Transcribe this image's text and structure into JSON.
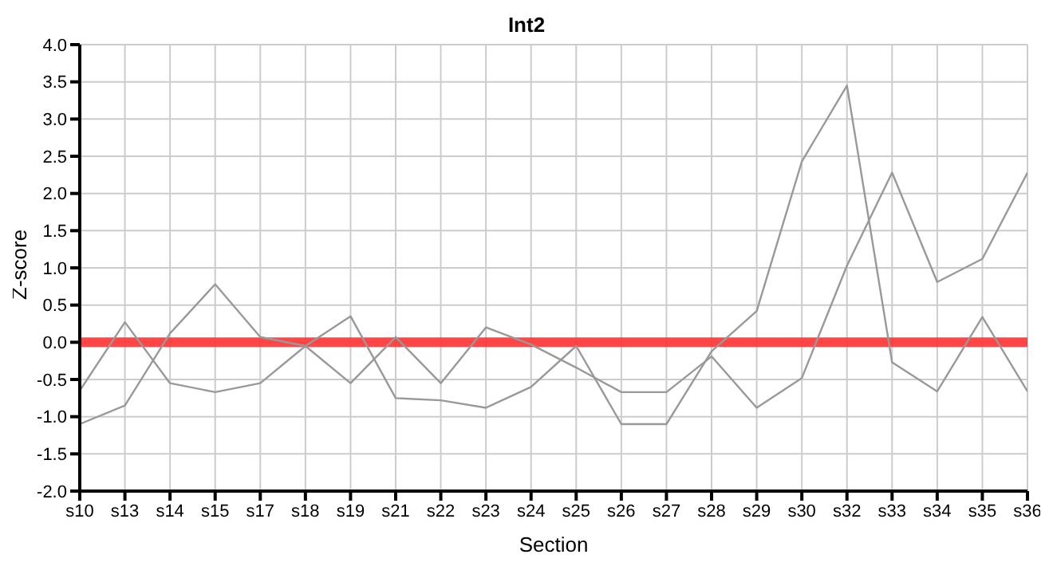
{
  "chart_data": {
    "type": "line",
    "title": "Int2",
    "xlabel": "Section",
    "ylabel": "Z-score",
    "categories": [
      "s10",
      "s13",
      "s14",
      "s15",
      "s17",
      "s18",
      "s19",
      "s21",
      "s22",
      "s23",
      "s24",
      "s25",
      "s26",
      "s27",
      "s28",
      "s29",
      "s30",
      "s32",
      "s33",
      "s34",
      "s35",
      "s36"
    ],
    "series": [
      {
        "color": "#999999",
        "values": [
          -0.65,
          0.27,
          -0.55,
          -0.67,
          -0.55,
          -0.05,
          0.35,
          -0.75,
          -0.78,
          -0.88,
          -0.6,
          -0.05,
          -1.1,
          -1.1,
          -0.12,
          0.42,
          2.43,
          3.45,
          -0.27,
          -0.66,
          0.34,
          -0.66
        ]
      },
      {
        "color": "#999999",
        "values": [
          -1.1,
          -0.85,
          0.12,
          0.78,
          0.07,
          -0.05,
          -0.55,
          0.07,
          -0.55,
          0.2,
          -0.03,
          -0.34,
          -0.67,
          -0.67,
          -0.19,
          -0.88,
          -0.48,
          1.03,
          2.28,
          0.81,
          1.12,
          2.28
        ]
      }
    ],
    "ylim": [
      -2,
      4
    ],
    "yticks": [
      {
        "value": -2,
        "label": "-2.0"
      },
      {
        "value": -1.5,
        "label": "-1.5"
      },
      {
        "value": -1,
        "label": "-1.0"
      },
      {
        "value": -0.5,
        "label": "-0.5"
      },
      {
        "value": 0,
        "label": "0.0"
      },
      {
        "value": 0.5,
        "label": "0.5"
      },
      {
        "value": 1,
        "label": "1.0"
      },
      {
        "value": 1.5,
        "label": "1.5"
      },
      {
        "value": 2,
        "label": "2.0"
      },
      {
        "value": 2.5,
        "label": "2.5"
      },
      {
        "value": 3,
        "label": "3.0"
      },
      {
        "value": 3.5,
        "label": "3.5"
      },
      {
        "value": 4,
        "label": "4.0"
      }
    ],
    "ref_lines": [
      {
        "axis": "y",
        "value": 0,
        "color": "#ff3333"
      }
    ],
    "grid": true,
    "legend": false,
    "marker": "none",
    "line_style": "solid"
  }
}
